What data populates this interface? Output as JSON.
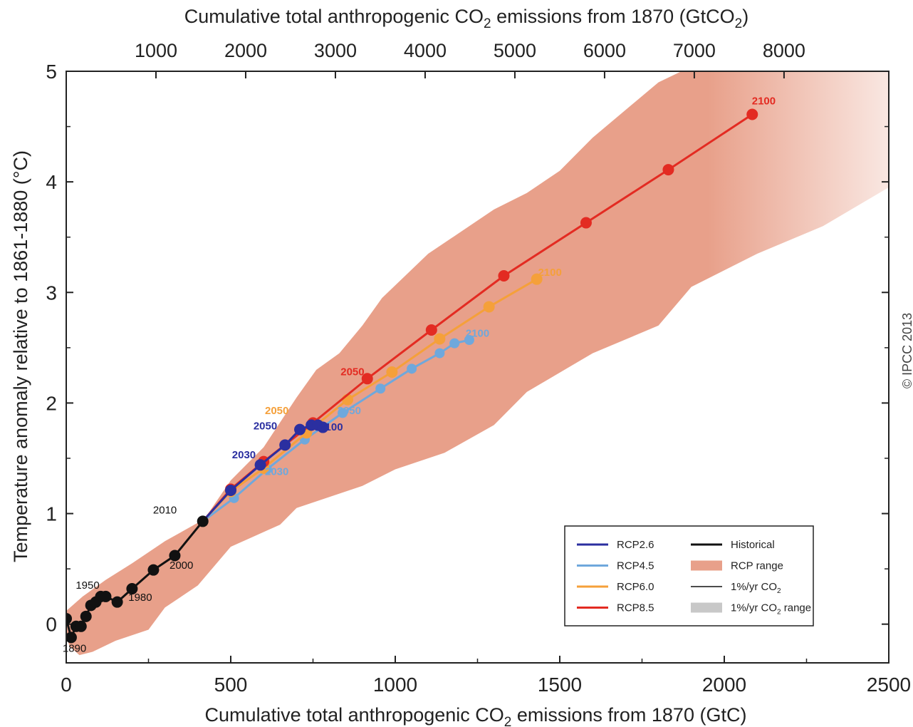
{
  "colors": {
    "rcp26": "#2b2fa0",
    "rcp45": "#6fa8dc",
    "rcp60": "#f5a03a",
    "rcp85": "#e32b22",
    "historical": "#111111",
    "rcp_range": "#e8a08a",
    "pct_range": "#c8c8c8"
  },
  "copyright": "© IPCC 2013",
  "chart_data": {
    "type": "line",
    "xlabel_main": "Cumulative total anthropogenic CO",
    "xlabel_sub": "2",
    "xlabel_tail": " emissions from 1870 (GtC)",
    "x2label_main": "Cumulative total anthropogenic CO",
    "x2label_sub": "2",
    "x2label_tail": " emissions from 1870 (GtCO",
    "x2label_sub2": "2",
    "x2label_end": ")",
    "ylabel": "Temperature anomaly relative to 1861-1880 (°C)",
    "xlim": [
      0,
      2500
    ],
    "ylim": [
      -0.35,
      5
    ],
    "x_ticks": [
      0,
      500,
      1000,
      1500,
      2000,
      2500
    ],
    "x_tick_labels": [
      "0",
      "500",
      "1000",
      "1500",
      "2000",
      "2500"
    ],
    "y_ticks": [
      0,
      1,
      2,
      3,
      4,
      5
    ],
    "y_tick_labels": [
      "0",
      "1",
      "2",
      "3",
      "4",
      "5"
    ],
    "x2_ticks_gtco2": [
      1000,
      2000,
      3000,
      4000,
      5000,
      6000,
      7000,
      8000
    ],
    "x2_tick_labels": [
      "1000",
      "2000",
      "3000",
      "4000",
      "5000",
      "6000",
      "7000",
      "8000"
    ],
    "rcp_range_upper": [
      [
        420,
        0.95
      ],
      [
        500,
        1.3
      ],
      [
        600,
        1.6
      ],
      [
        700,
        2.05
      ],
      [
        760,
        2.3
      ],
      [
        830,
        2.45
      ],
      [
        900,
        2.7
      ],
      [
        960,
        2.95
      ],
      [
        1030,
        3.15
      ],
      [
        1100,
        3.35
      ],
      [
        1200,
        3.55
      ],
      [
        1300,
        3.75
      ],
      [
        1400,
        3.9
      ],
      [
        1500,
        4.1
      ],
      [
        1600,
        4.4
      ],
      [
        1700,
        4.65
      ],
      [
        1800,
        4.9
      ],
      [
        1870,
        5.0
      ]
    ],
    "rcp_range_lower": [
      [
        2500,
        3.95
      ],
      [
        2300,
        3.6
      ],
      [
        2100,
        3.35
      ],
      [
        1900,
        3.05
      ],
      [
        1800,
        2.7
      ],
      [
        1600,
        2.45
      ],
      [
        1400,
        2.1
      ],
      [
        1300,
        1.8
      ],
      [
        1150,
        1.55
      ],
      [
        1000,
        1.4
      ],
      [
        900,
        1.25
      ],
      [
        800,
        1.15
      ],
      [
        700,
        1.05
      ],
      [
        650,
        0.9
      ],
      [
        560,
        0.78
      ],
      [
        500,
        0.7
      ],
      [
        400,
        0.35
      ],
      [
        300,
        0.15
      ],
      [
        250,
        -0.05
      ],
      [
        150,
        -0.15
      ],
      [
        80,
        -0.25
      ],
      [
        40,
        -0.28
      ],
      [
        10,
        -0.2
      ],
      [
        0,
        -0.1
      ],
      [
        0,
        0.12
      ],
      [
        50,
        0.25
      ],
      [
        120,
        0.4
      ],
      [
        200,
        0.55
      ],
      [
        300,
        0.75
      ]
    ],
    "rcp_range_right_top": [
      2500,
      5.0
    ],
    "series": [
      {
        "key": "historical",
        "name": "Historical",
        "x": [
          0,
          15,
          30,
          45,
          60,
          75,
          90,
          105,
          120,
          155,
          200,
          265,
          330,
          415
        ],
        "y": [
          0.05,
          -0.12,
          -0.02,
          -0.02,
          0.07,
          0.17,
          0.2,
          0.25,
          0.25,
          0.2,
          0.32,
          0.49,
          0.62,
          0.93
        ]
      },
      {
        "key": "rcp26",
        "name": "RCP2.6",
        "x": [
          415,
          500,
          590,
          665,
          710,
          745,
          765,
          780
        ],
        "y": [
          0.93,
          1.21,
          1.44,
          1.62,
          1.76,
          1.8,
          1.8,
          1.78
        ]
      },
      {
        "key": "rcp45",
        "name": "RCP4.5",
        "x": [
          415,
          510,
          610,
          725,
          840,
          955,
          1050,
          1135,
          1180,
          1225
        ],
        "y": [
          0.93,
          1.14,
          1.4,
          1.67,
          1.91,
          2.13,
          2.31,
          2.45,
          2.54,
          2.57
        ]
      },
      {
        "key": "rcp60",
        "name": "RCP6.0",
        "x": [
          415,
          500,
          600,
          730,
          855,
          990,
          1135,
          1285,
          1430
        ],
        "y": [
          0.93,
          1.2,
          1.41,
          1.73,
          2.03,
          2.28,
          2.58,
          2.87,
          3.12
        ]
      },
      {
        "key": "rcp85",
        "name": "RCP8.5",
        "x": [
          415,
          500,
          600,
          750,
          915,
          1110,
          1330,
          1580,
          1830,
          2085
        ],
        "y": [
          0.93,
          1.22,
          1.47,
          1.82,
          2.22,
          2.66,
          3.15,
          3.63,
          4.11,
          4.61
        ]
      }
    ],
    "year_labels": [
      {
        "text": "1890",
        "x": 25,
        "y": -0.25,
        "color": "historical"
      },
      {
        "text": "1950",
        "x": 65,
        "y": 0.32,
        "color": "historical"
      },
      {
        "text": "1980",
        "x": 225,
        "y": 0.21,
        "color": "historical"
      },
      {
        "text": "2000",
        "x": 350,
        "y": 0.5,
        "color": "historical"
      },
      {
        "text": "2010",
        "x": 300,
        "y": 1.0,
        "color": "historical"
      },
      {
        "text": "2030",
        "x": 540,
        "y": 1.5,
        "color": "rcp26"
      },
      {
        "text": "2050",
        "x": 605,
        "y": 1.76,
        "color": "rcp26"
      },
      {
        "text": "2100",
        "x": 805,
        "y": 1.75,
        "color": "rcp26"
      },
      {
        "text": "2050",
        "x": 640,
        "y": 1.9,
        "color": "rcp60"
      },
      {
        "text": "2050",
        "x": 870,
        "y": 2.25,
        "color": "rcp85"
      },
      {
        "text": "2100",
        "x": 2120,
        "y": 4.7,
        "color": "rcp85"
      },
      {
        "text": "2100",
        "x": 1470,
        "y": 3.15,
        "color": "rcp60"
      },
      {
        "text": "2100",
        "x": 1250,
        "y": 2.6,
        "color": "rcp45"
      },
      {
        "text": "2050",
        "x": 860,
        "y": 1.9,
        "color": "rcp45"
      },
      {
        "text": "2030",
        "x": 640,
        "y": 1.35,
        "color": "rcp45"
      }
    ],
    "legend": {
      "placement": "bottom-right",
      "items": [
        {
          "label": "RCP2.6",
          "type": "line",
          "color": "rcp26"
        },
        {
          "label": "RCP4.5",
          "type": "line",
          "color": "rcp45"
        },
        {
          "label": "RCP6.0",
          "type": "line",
          "color": "rcp60"
        },
        {
          "label": "RCP8.5",
          "type": "line",
          "color": "rcp85"
        },
        {
          "label": "Historical",
          "type": "line",
          "color": "historical"
        },
        {
          "label": "RCP range",
          "type": "patch",
          "color": "rcp_range"
        },
        {
          "label": "1%/yr CO",
          "sub": "2",
          "type": "thinline",
          "color": "historical"
        },
        {
          "label": "1%/yr CO",
          "sub": "2",
          "tail": " range",
          "type": "patch",
          "color": "pct_range"
        }
      ]
    }
  }
}
